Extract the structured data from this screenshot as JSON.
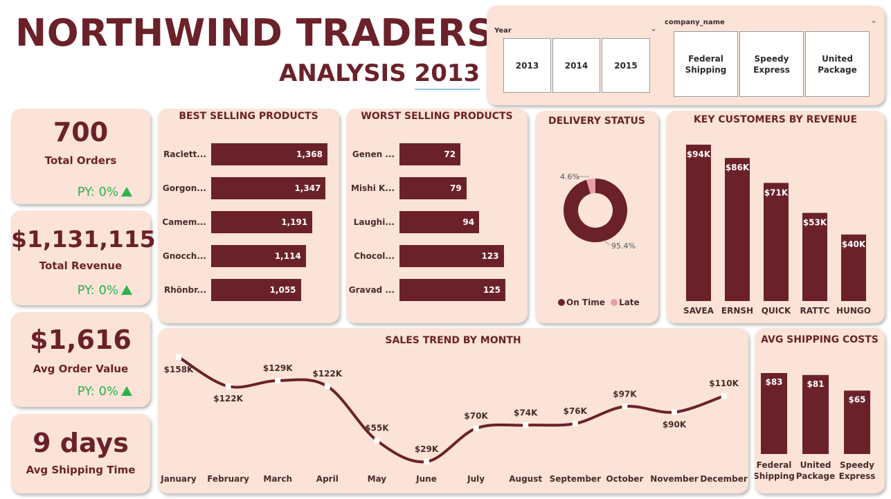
{
  "header": {
    "title": "NORTHWIND TRADERS",
    "subtitle_prefix": "ANALYSIS",
    "subtitle_year": "2013"
  },
  "filters": {
    "year_label": "Year",
    "years": [
      "2013",
      "2014",
      "2015"
    ],
    "company_label": "company_name",
    "companies": [
      "Federal Shipping",
      "Speedy Express",
      "United Package"
    ]
  },
  "kpis": [
    {
      "value": "700",
      "label": "Total Orders",
      "py": "PY: 0%"
    },
    {
      "value": "$1,131,115",
      "label": "Total Revenue",
      "py": "PY: 0%"
    },
    {
      "value": "$1,616",
      "label": "Avg Order Value",
      "py": "PY: 0%"
    },
    {
      "value": "9 days",
      "label": "Avg Shipping Time"
    }
  ],
  "colors": {
    "primary": "#6b2129",
    "card": "#fbe3d8",
    "late": "#e8a0a8",
    "positive": "#2eb24a"
  },
  "chart_data": [
    {
      "type": "bar",
      "orientation": "horizontal",
      "title": "BEST SELLING PRODUCTS",
      "categories": [
        "Raclett...",
        "Gorgon...",
        "Camem...",
        "Gnocch...",
        "Rhönbr..."
      ],
      "values": [
        1368,
        1347,
        1191,
        1114,
        1055
      ],
      "labels": [
        "1,368",
        "1,347",
        "1,191",
        "1,114",
        "1,055"
      ]
    },
    {
      "type": "bar",
      "orientation": "horizontal",
      "title": "WORST SELLING PRODUCTS",
      "categories": [
        "Genen ...",
        "Mishi K...",
        "Laughi...",
        "Chocol...",
        "Gravad ..."
      ],
      "values": [
        72,
        79,
        94,
        123,
        125
      ],
      "labels": [
        "72",
        "79",
        "94",
        "123",
        "125"
      ]
    },
    {
      "type": "pie",
      "title": "DELIVERY STATUS",
      "categories": [
        "On Time",
        "Late"
      ],
      "values": [
        95.4,
        4.6
      ],
      "labels": [
        "95.4%",
        "4.6%"
      ]
    },
    {
      "type": "bar",
      "title": "KEY CUSTOMERS BY REVENUE",
      "categories": [
        "SAVEA",
        "ERNSH",
        "QUICK",
        "RATTC",
        "HUNGO"
      ],
      "values": [
        94,
        86,
        71,
        53,
        40
      ],
      "labels": [
        "$94K",
        "$86K",
        "$71K",
        "$53K",
        "$40K"
      ]
    },
    {
      "type": "line",
      "title": "SALES TREND BY MONTH",
      "categories": [
        "January",
        "February",
        "March",
        "April",
        "May",
        "June",
        "July",
        "August",
        "September",
        "October",
        "November",
        "December"
      ],
      "values": [
        158,
        122,
        129,
        122,
        55,
        29,
        70,
        74,
        76,
        97,
        90,
        110
      ],
      "labels": [
        "$158K",
        "$122K",
        "$129K",
        "$122K",
        "$55K",
        "$29K",
        "$70K",
        "$74K",
        "$76K",
        "$97K",
        "$90K",
        "$110K"
      ]
    },
    {
      "type": "bar",
      "title": "AVG SHIPPING COSTS",
      "categories": [
        [
          "Federal",
          "Shipping"
        ],
        [
          "United",
          "Package"
        ],
        [
          "Speedy",
          "Express"
        ]
      ],
      "values": [
        83,
        81,
        65
      ],
      "labels": [
        "$83",
        "$81",
        "$65"
      ]
    }
  ]
}
